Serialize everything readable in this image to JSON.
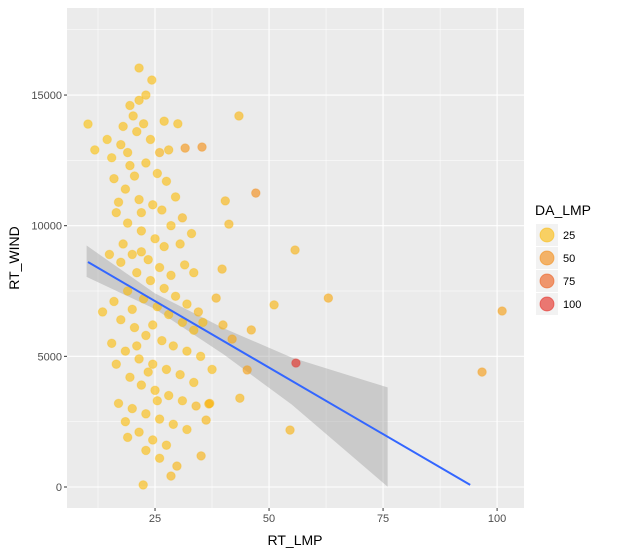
{
  "chart_data": {
    "type": "scatter",
    "title": "",
    "xlabel": "RT_LMP",
    "ylabel": "RT_WIND",
    "xlim": [
      5.7,
      105.9
    ],
    "ylim": [
      -804,
      18331
    ],
    "x_ticks": [
      25,
      50,
      75,
      100
    ],
    "y_ticks": [
      0,
      5000,
      10000,
      15000
    ],
    "x_tick_labels": [
      "25",
      "50",
      "75",
      "100"
    ],
    "y_tick_labels": [
      "0",
      "5000",
      "10000",
      "15000"
    ],
    "grid": true,
    "legend": {
      "title": "DA_LMP",
      "position": "right",
      "entries": [
        {
          "label": "25",
          "value": 25
        },
        {
          "label": "50",
          "value": 50
        },
        {
          "label": "75",
          "value": 75
        },
        {
          "label": "100",
          "value": 100
        }
      ]
    },
    "color_scale": {
      "low": "#FFD700",
      "high": "#E31A1C",
      "domain": [
        10,
        105
      ]
    },
    "point_alpha": 0.6,
    "points_columns": [
      "RT_LMP",
      "RT_WIND",
      "DA_LMP"
    ],
    "points": [
      [
        10.3,
        13890,
        22
      ],
      [
        11.8,
        12900,
        22
      ],
      [
        21.5,
        16035,
        24
      ],
      [
        24.3,
        15575,
        24
      ],
      [
        43.4,
        14200,
        28
      ],
      [
        31.6,
        12970,
        45
      ],
      [
        35.3,
        13010,
        48
      ],
      [
        47.1,
        11250,
        50
      ],
      [
        40.4,
        10950,
        28
      ],
      [
        41.2,
        10060,
        28
      ],
      [
        55.7,
        9070,
        30
      ],
      [
        39.7,
        8340,
        28
      ],
      [
        38.4,
        7230,
        30
      ],
      [
        51.1,
        6970,
        28
      ],
      [
        63.0,
        7230,
        35
      ],
      [
        101.1,
        6735,
        40
      ],
      [
        39.9,
        6200,
        30
      ],
      [
        46.1,
        6010,
        32
      ],
      [
        41.9,
        5660,
        35
      ],
      [
        45.2,
        4480,
        40
      ],
      [
        55.9,
        4745,
        100
      ],
      [
        96.7,
        4400,
        42
      ],
      [
        43.6,
        3400,
        28
      ],
      [
        54.6,
        2180,
        30
      ],
      [
        35.1,
        1190,
        30
      ],
      [
        29.8,
        800,
        28
      ],
      [
        28.5,
        420,
        28
      ],
      [
        22.4,
        80,
        25
      ],
      [
        36.8,
        3180,
        28
      ],
      [
        36.2,
        2560,
        28
      ],
      [
        19.5,
        14600,
        24
      ],
      [
        20.2,
        14200,
        24
      ],
      [
        18.0,
        13800,
        24
      ],
      [
        21.0,
        13600,
        24
      ],
      [
        22.5,
        13900,
        24
      ],
      [
        17.5,
        13100,
        24
      ],
      [
        19.0,
        12800,
        24
      ],
      [
        24.0,
        13300,
        24
      ],
      [
        26.0,
        12800,
        30
      ],
      [
        28.0,
        12900,
        26
      ],
      [
        30.0,
        13900,
        24
      ],
      [
        14.5,
        13300,
        22
      ],
      [
        15.5,
        12600,
        22
      ],
      [
        16.0,
        11800,
        24
      ],
      [
        23.0,
        12400,
        24
      ],
      [
        25.5,
        12000,
        24
      ],
      [
        27.5,
        11700,
        24
      ],
      [
        20.5,
        11900,
        24
      ],
      [
        18.5,
        11400,
        24
      ],
      [
        17.0,
        10900,
        24
      ],
      [
        21.5,
        11000,
        24
      ],
      [
        24.5,
        10800,
        24
      ],
      [
        26.5,
        10600,
        24
      ],
      [
        29.5,
        11100,
        24
      ],
      [
        31.0,
        10300,
        28
      ],
      [
        28.5,
        10000,
        24
      ],
      [
        16.5,
        10500,
        24
      ],
      [
        19.0,
        10100,
        24
      ],
      [
        22.0,
        9800,
        24
      ],
      [
        25.0,
        9500,
        24
      ],
      [
        27.0,
        9200,
        24
      ],
      [
        30.5,
        9300,
        24
      ],
      [
        33.0,
        9700,
        24
      ],
      [
        18.0,
        9300,
        24
      ],
      [
        20.0,
        8900,
        24
      ],
      [
        23.5,
        8700,
        24
      ],
      [
        26.0,
        8400,
        24
      ],
      [
        28.5,
        8100,
        24
      ],
      [
        31.5,
        8500,
        24
      ],
      [
        33.5,
        8200,
        24
      ],
      [
        17.5,
        8600,
        24
      ],
      [
        15.0,
        8900,
        24
      ],
      [
        21.0,
        8200,
        24
      ],
      [
        24.0,
        7900,
        24
      ],
      [
        27.0,
        7600,
        24
      ],
      [
        29.5,
        7300,
        24
      ],
      [
        32.0,
        7000,
        24
      ],
      [
        34.5,
        6700,
        28
      ],
      [
        19.0,
        7500,
        24
      ],
      [
        16.0,
        7100,
        24
      ],
      [
        22.5,
        7200,
        24
      ],
      [
        25.5,
        6900,
        24
      ],
      [
        28.0,
        6600,
        24
      ],
      [
        31.0,
        6300,
        24
      ],
      [
        33.5,
        6000,
        24
      ],
      [
        35.5,
        6300,
        24
      ],
      [
        13.5,
        6700,
        24
      ],
      [
        17.5,
        6400,
        24
      ],
      [
        20.5,
        6100,
        24
      ],
      [
        23.0,
        5800,
        24
      ],
      [
        26.5,
        5600,
        24
      ],
      [
        29.0,
        5400,
        24
      ],
      [
        32.0,
        5200,
        24
      ],
      [
        35.0,
        5000,
        24
      ],
      [
        15.5,
        5500,
        24
      ],
      [
        18.5,
        5200,
        24
      ],
      [
        21.5,
        4900,
        24
      ],
      [
        24.5,
        4700,
        24
      ],
      [
        27.5,
        4500,
        24
      ],
      [
        30.5,
        4300,
        24
      ],
      [
        33.5,
        4000,
        24
      ],
      [
        37.5,
        4500,
        24
      ],
      [
        16.5,
        4700,
        24
      ],
      [
        19.5,
        4200,
        24
      ],
      [
        22.0,
        3900,
        24
      ],
      [
        25.0,
        3700,
        24
      ],
      [
        28.0,
        3500,
        24
      ],
      [
        31.0,
        3300,
        24
      ],
      [
        34.0,
        3100,
        28
      ],
      [
        37.0,
        3200,
        28
      ],
      [
        17.0,
        3200,
        24
      ],
      [
        20.0,
        3000,
        24
      ],
      [
        23.0,
        2800,
        24
      ],
      [
        26.0,
        2600,
        24
      ],
      [
        29.0,
        2400,
        24
      ],
      [
        32.0,
        2200,
        24
      ],
      [
        18.5,
        2500,
        24
      ],
      [
        21.5,
        2100,
        24
      ],
      [
        24.5,
        1800,
        24
      ],
      [
        27.5,
        1600,
        24
      ],
      [
        19.0,
        1900,
        24
      ],
      [
        23.0,
        1400,
        24
      ],
      [
        26.0,
        1100,
        24
      ],
      [
        22.0,
        9000,
        24
      ],
      [
        24.5,
        6200,
        24
      ],
      [
        21.0,
        5400,
        24
      ],
      [
        23.5,
        4400,
        24
      ],
      [
        25.5,
        3300,
        24
      ],
      [
        20.0,
        6800,
        24
      ],
      [
        22.0,
        10500,
        24
      ],
      [
        19.5,
        12300,
        24
      ],
      [
        27.0,
        14000,
        24
      ],
      [
        23.0,
        15000,
        24
      ],
      [
        21.5,
        14800,
        24
      ]
    ],
    "regression": {
      "method": "lm",
      "color": "#3366FF",
      "x_range": [
        10.3,
        94.1
      ],
      "y_at_ends": [
        8610,
        80
      ],
      "ci_band": {
        "x": [
          10,
          25,
          40,
          55,
          76
        ],
        "lower": [
          8040,
          6810,
          5080,
          3150,
          10
        ],
        "upper": [
          9240,
          7410,
          6080,
          4950,
          3810
        ]
      }
    }
  }
}
